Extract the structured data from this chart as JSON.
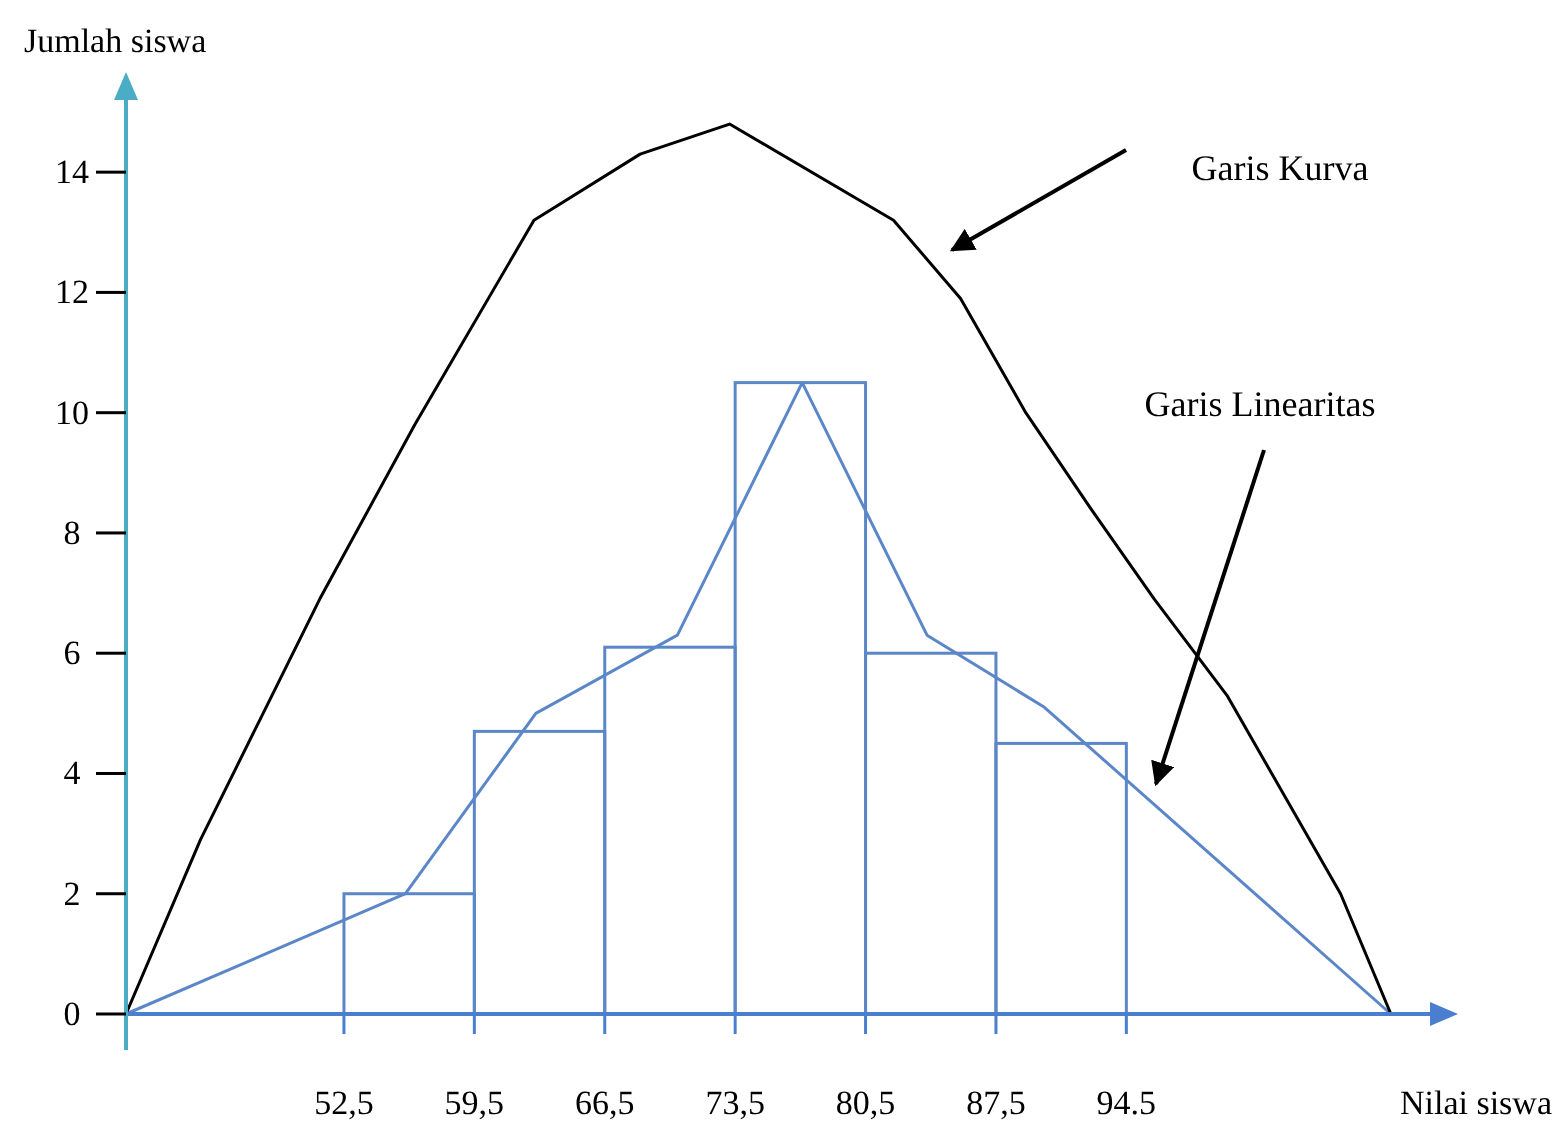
{
  "chart_data": {
    "type": "histogram",
    "xlabel": "Nilai siswa",
    "ylabel": "Jumlah siswa",
    "bins": [
      52.5,
      59.5,
      66.5,
      73.5,
      80.5,
      87.5,
      94.5
    ],
    "values": [
      2,
      4.7,
      6.1,
      10.5,
      6,
      4.5
    ],
    "color": "#5b87c8",
    "series": [
      {
        "type": "line",
        "color": "#5b87c8",
        "x": [
          40.8,
          55.8,
          62.8,
          70.4,
          77.1,
          83.8,
          90.1,
          108.7
        ],
        "values": [
          0,
          2,
          5,
          6.3,
          10.5,
          6.3,
          5.1,
          0
        ]
      },
      {
        "type": "line",
        "color": "#000000",
        "x": [
          40.8,
          44.8,
          48,
          51.2,
          56.3,
          62.7,
          68.4,
          73.2,
          82,
          85.6,
          89.1,
          92.6,
          96,
          99.9,
          106,
          108.7
        ],
        "values": [
          0,
          2.9,
          4.9,
          6.9,
          9.8,
          13.2,
          14.3,
          14.8,
          13.2,
          11.9,
          10,
          8.4,
          6.9,
          5.3,
          2,
          0
        ]
      }
    ],
    "xlim": [
      40.8,
      110.8
    ],
    "ylim": [
      0,
      15.2
    ],
    "xticks": [
      {
        "value": 52.5,
        "label": "52,5"
      },
      {
        "value": 59.5,
        "label": "59,5"
      },
      {
        "value": 66.5,
        "label": "66,5"
      },
      {
        "value": 73.5,
        "label": "73,5"
      },
      {
        "value": 80.5,
        "label": "80,5"
      },
      {
        "value": 87.5,
        "label": "87,5"
      },
      {
        "value": 94.5,
        "label": "94.5"
      }
    ],
    "yticks": [
      0,
      2,
      4,
      6,
      8,
      10,
      12,
      14
    ],
    "annotations": [
      "Garis Kurva",
      "Garis Linearitas"
    ]
  }
}
